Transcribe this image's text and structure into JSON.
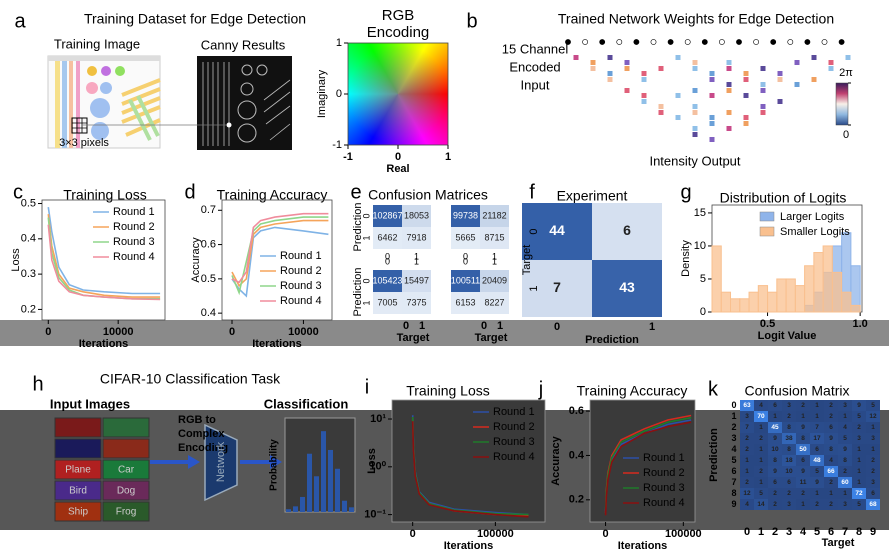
{
  "a": {
    "letter": "a",
    "title": "Training Dataset for Edge Detection",
    "image_label": "Training Image",
    "result_label": "Canny Results",
    "pixel_label": "3×3 pixels"
  },
  "rgb": {
    "type": "heatmap",
    "title": "RGB Encoding",
    "xlabel": "Real",
    "ylabel": "Imaginary",
    "xlim": [
      -1,
      1
    ],
    "ylim": [
      -1,
      1
    ],
    "xticks": [
      -1,
      0,
      1
    ],
    "yticks": [
      -1,
      0,
      1
    ]
  },
  "b": {
    "letter": "b",
    "title": "Trained Network Weights for Edge Detection",
    "input_label": [
      "15 Channel",
      "Encoded",
      "Input"
    ],
    "output_label": "Intensity Output",
    "colorbar_lim": [
      0,
      6.283
    ],
    "colorbar_ticks": [
      {
        "value": 6.283,
        "label": "2π"
      },
      0
    ]
  },
  "c": {
    "type": "line",
    "letter": "c",
    "title": "Training Loss",
    "xlabel": "Iterations",
    "ylabel": "Loss",
    "xlim": [
      -900,
      16700
    ],
    "ylim": [
      0.17,
      0.51
    ],
    "xticks": [
      0,
      10000
    ],
    "yticks": [
      0.2,
      0.3,
      0.4,
      0.5
    ],
    "legend": "upper right",
    "x": [
      0,
      500,
      1500,
      3000,
      5000,
      8000,
      12000,
      16000
    ],
    "series": [
      {
        "name": "Round 1",
        "color": "#7fb3e6",
        "values": [
          0.49,
          0.42,
          0.32,
          0.27,
          0.255,
          0.25,
          0.245,
          0.245
        ]
      },
      {
        "name": "Round 2",
        "color": "#f5a45a",
        "values": [
          0.47,
          0.38,
          0.3,
          0.26,
          0.25,
          0.24,
          0.235,
          0.235
        ]
      },
      {
        "name": "Round 3",
        "color": "#8fd68a",
        "values": [
          0.46,
          0.36,
          0.29,
          0.255,
          0.24,
          0.235,
          0.23,
          0.23
        ]
      },
      {
        "name": "Round 4",
        "color": "#f08c9c",
        "values": [
          0.44,
          0.34,
          0.28,
          0.25,
          0.24,
          0.235,
          0.23,
          0.228
        ]
      }
    ]
  },
  "d": {
    "type": "line",
    "letter": "d",
    "title": "Training Accuracy",
    "xlabel": "Iterations",
    "ylabel": "Accuracy",
    "xlim": [
      -1400,
      14000
    ],
    "ylim": [
      0.38,
      0.73
    ],
    "xticks": [
      0,
      10000
    ],
    "yticks": [
      0.4,
      0.5,
      0.6,
      0.7
    ],
    "legend": "lower right",
    "x": [
      0,
      1000,
      2000,
      3000,
      4000,
      6000,
      10000,
      13500
    ],
    "series": [
      {
        "name": "Round 1",
        "color": "#7fb3e6",
        "values": [
          0.5,
          0.47,
          0.45,
          0.62,
          0.64,
          0.65,
          0.64,
          0.63
        ]
      },
      {
        "name": "Round 2",
        "color": "#f5a45a",
        "values": [
          0.52,
          0.48,
          0.5,
          0.63,
          0.65,
          0.66,
          0.67,
          0.67
        ]
      },
      {
        "name": "Round 3",
        "color": "#8fd68a",
        "values": [
          0.51,
          0.46,
          0.55,
          0.64,
          0.66,
          0.67,
          0.68,
          0.68
        ]
      },
      {
        "name": "Round 4",
        "color": "#f08c9c",
        "values": [
          0.5,
          0.49,
          0.52,
          0.65,
          0.67,
          0.68,
          0.69,
          0.69
        ]
      }
    ]
  },
  "e": {
    "type": "matrix",
    "letter": "e",
    "title": "Confusion Matrices",
    "xlabel": "Target",
    "ylabel": "Prediction",
    "ticks": [
      0,
      1
    ],
    "matrices": [
      [
        [
          102867,
          18053
        ],
        [
          6462,
          7918
        ]
      ],
      [
        [
          99738,
          21182
        ],
        [
          5665,
          8715
        ]
      ],
      [
        [
          105423,
          15497
        ],
        [
          7005,
          7375
        ]
      ],
      [
        [
          100511,
          20409
        ],
        [
          6153,
          8227
        ]
      ]
    ]
  },
  "f": {
    "type": "matrix",
    "letter": "f",
    "title": "Experiment",
    "xlabel": "Prediction",
    "ylabel": "Target",
    "ticks": [
      0,
      1
    ],
    "values": [
      [
        44,
        6
      ],
      [
        7,
        43
      ]
    ]
  },
  "g": {
    "type": "histogram",
    "letter": "g",
    "title": "Distribution of Logits",
    "xlabel": "Logit Value",
    "ylabel": "Density",
    "xlim": [
      0.2,
      1.01
    ],
    "ylim": [
      0,
      16.2
    ],
    "xticks": [
      0.5,
      {
        "value": 1,
        "label": "1.0"
      }
    ],
    "yticks": [
      0,
      5,
      10,
      15
    ],
    "legend": "upper right",
    "bins": [
      0.2,
      0.25,
      0.3,
      0.35,
      0.4,
      0.45,
      0.5,
      0.55,
      0.6,
      0.65,
      0.7,
      0.75,
      0.8,
      0.85,
      0.9,
      0.95,
      1.0
    ],
    "series": [
      {
        "name": "Larger Logits",
        "color": "#8fb4ea",
        "values": [
          0,
          0,
          0,
          0,
          0,
          0,
          0,
          0,
          0,
          0,
          1,
          3,
          6,
          10,
          12,
          7
        ]
      },
      {
        "name": "Smaller Logits",
        "color": "#f9c08f",
        "values": [
          10,
          3,
          2,
          2,
          3,
          4,
          3,
          5,
          5,
          4,
          7,
          9,
          10,
          6,
          3,
          1
        ]
      }
    ]
  },
  "h": {
    "letter": "h",
    "title": "CIFAR-10 Classification Task",
    "input_label": "Input Images",
    "image_labels": [
      null,
      null,
      null,
      null,
      "Plane",
      "Car",
      "Bird",
      "Dog",
      "Ship",
      "Frog"
    ],
    "encoding_label": [
      "RGB to",
      "Complex",
      "Encoding"
    ],
    "network_label": "Network",
    "output": {
      "type": "bar",
      "title": "Classification",
      "ylabel": "Probability",
      "categories": [
        null,
        null,
        null,
        null,
        null,
        null,
        null,
        null,
        null,
        null
      ],
      "values": [
        0.03,
        0.06,
        0.16,
        0.62,
        0.38,
        0.86,
        0.66,
        0.46,
        0.12,
        0.05
      ],
      "ylim": [
        0,
        1
      ],
      "color": "#2a56a8"
    }
  },
  "i": {
    "type": "line",
    "letter": "i",
    "title": "Training Loss",
    "xlabel": "Iterations",
    "ylabel": "Loss",
    "ylog": true,
    "xlim": [
      -25000,
      160000
    ],
    "ylim": [
      0.07,
      25
    ],
    "xticks": [
      0,
      100000
    ],
    "yticks": [
      {
        "value": 0.1,
        "label": "10⁻¹"
      },
      {
        "value": 1,
        "label": "10⁰"
      },
      {
        "value": 10,
        "label": "10¹"
      }
    ],
    "legend": "upper right",
    "x": [
      0,
      1000,
      3000,
      8000,
      20000,
      50000,
      100000,
      140000
    ],
    "series": [
      {
        "name": "Round 1",
        "color": "#2c4fa8",
        "values": [
          12,
          3,
          0.8,
          0.3,
          0.18,
          0.13,
          0.11,
          0.1
        ]
      },
      {
        "name": "Round 2",
        "color": "#d62a1e",
        "values": [
          10,
          2.5,
          0.7,
          0.28,
          0.17,
          0.12,
          0.1,
          0.095
        ]
      },
      {
        "name": "Round 3",
        "color": "#1f7a2a",
        "values": [
          11,
          2.8,
          0.75,
          0.29,
          0.17,
          0.125,
          0.105,
          0.1
        ]
      },
      {
        "name": "Round 4",
        "color": "#8a1010",
        "values": [
          9,
          2.2,
          0.65,
          0.27,
          0.16,
          0.12,
          0.1,
          0.09
        ]
      }
    ]
  },
  "j": {
    "type": "line",
    "letter": "j",
    "title": "Training Accuracy",
    "xlabel": "Iterations",
    "ylabel": "Accuracy",
    "xlim": [
      -20000,
      115000
    ],
    "ylim": [
      0.1,
      0.65
    ],
    "xticks": [
      0,
      100000
    ],
    "yticks": [
      0.2,
      0.4,
      0.6
    ],
    "legend": "lower right",
    "x": [
      0,
      1000,
      3000,
      8000,
      20000,
      50000,
      80000,
      110000
    ],
    "series": [
      {
        "name": "Round 1",
        "color": "#2c4fa8",
        "values": [
          0.15,
          0.22,
          0.3,
          0.38,
          0.45,
          0.5,
          0.54,
          0.56
        ]
      },
      {
        "name": "Round 2",
        "color": "#d62a1e",
        "values": [
          0.14,
          0.24,
          0.32,
          0.4,
          0.47,
          0.52,
          0.56,
          0.58
        ]
      },
      {
        "name": "Round 3",
        "color": "#1f7a2a",
        "values": [
          0.16,
          0.23,
          0.31,
          0.39,
          0.46,
          0.51,
          0.55,
          0.57
        ]
      },
      {
        "name": "Round 4",
        "color": "#8a1010",
        "values": [
          0.13,
          0.21,
          0.29,
          0.37,
          0.44,
          0.5,
          0.53,
          0.55
        ]
      }
    ]
  },
  "k": {
    "type": "matrix",
    "letter": "k",
    "title": "Confusion Matrix",
    "xlabel": "Target",
    "ylabel": "Prediction",
    "ticks": [
      0,
      1,
      2,
      3,
      4,
      5,
      6,
      7,
      8,
      9
    ],
    "values": [
      [
        63,
        4,
        6,
        3,
        2,
        1,
        2,
        3,
        9,
        5
      ],
      [
        3,
        70,
        1,
        2,
        1,
        1,
        2,
        1,
        5,
        12
      ],
      [
        7,
        1,
        45,
        8,
        9,
        7,
        6,
        4,
        2,
        1
      ],
      [
        2,
        2,
        9,
        38,
        8,
        17,
        9,
        5,
        3,
        3
      ],
      [
        2,
        1,
        10,
        8,
        50,
        6,
        8,
        9,
        1,
        1
      ],
      [
        1,
        1,
        8,
        18,
        6,
        48,
        4,
        8,
        1,
        2
      ],
      [
        1,
        2,
        9,
        10,
        9,
        5,
        66,
        2,
        1,
        2
      ],
      [
        2,
        1,
        6,
        6,
        11,
        9,
        2,
        60,
        1,
        3
      ],
      [
        12,
        5,
        2,
        2,
        2,
        1,
        1,
        1,
        72,
        6
      ],
      [
        4,
        14,
        2,
        3,
        1,
        2,
        2,
        3,
        5,
        68
      ]
    ]
  }
}
